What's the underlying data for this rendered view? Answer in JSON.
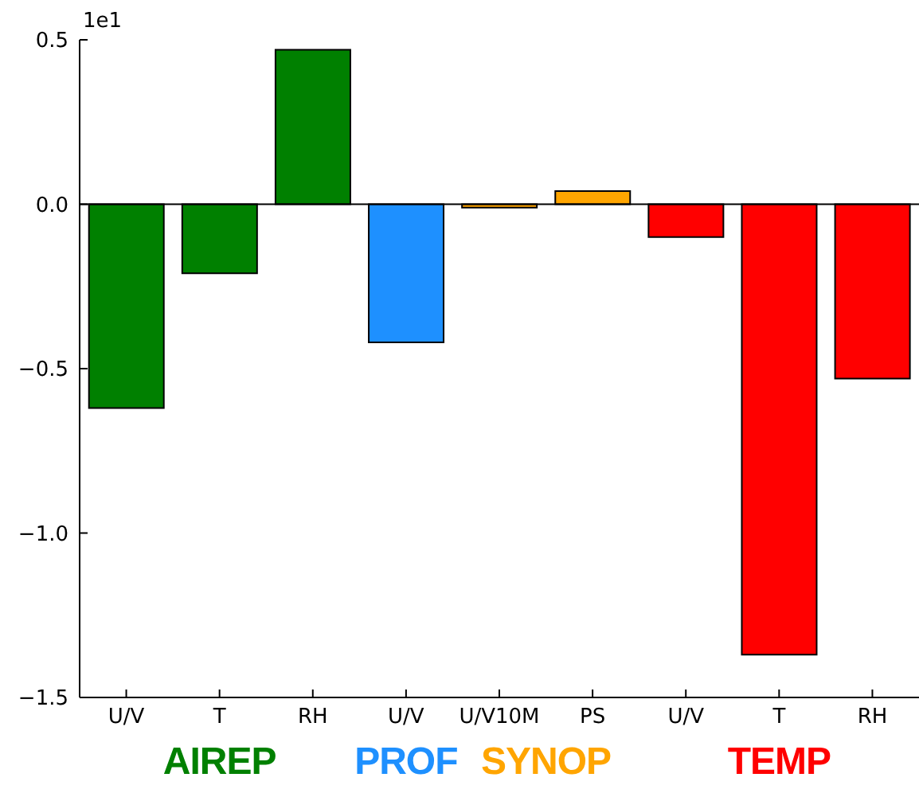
{
  "chart_data": {
    "type": "bar",
    "stacked": true,
    "categories": [
      "U/V",
      "T",
      "RH",
      "U/V",
      "U/V10M",
      "PS",
      "U/V",
      "T",
      "RH"
    ],
    "series": [
      {
        "name": "AIREP",
        "color": "#008000",
        "values": [
          -0.62,
          -0.21,
          0.47,
          null,
          null,
          null,
          null,
          null,
          null
        ]
      },
      {
        "name": "PROF",
        "color": "#1e90ff",
        "values": [
          null,
          null,
          null,
          -0.42,
          null,
          null,
          null,
          null,
          null
        ]
      },
      {
        "name": "SYNOP",
        "color": "#ffa500",
        "values": [
          null,
          null,
          null,
          null,
          -0.01,
          0.04,
          null,
          null,
          null
        ]
      },
      {
        "name": "TEMP",
        "color": "#ff0000",
        "values": [
          null,
          null,
          null,
          null,
          null,
          null,
          -0.1,
          -1.37,
          -0.53
        ]
      }
    ],
    "ylim": [
      -1.5,
      0.5
    ],
    "yticks": [
      0.5,
      {
        "value": 0,
        "label": "0.0"
      },
      {
        "value": -0.5,
        "label": "−0.5"
      },
      {
        "value": -1,
        "label": "−1.0"
      },
      {
        "value": -1.5,
        "label": "−1.5"
      }
    ],
    "ref_lines": [
      {
        "axis": "y",
        "value": 0,
        "color": "#000000"
      }
    ],
    "annotations": [
      "1e1"
    ],
    "grid": false
  }
}
